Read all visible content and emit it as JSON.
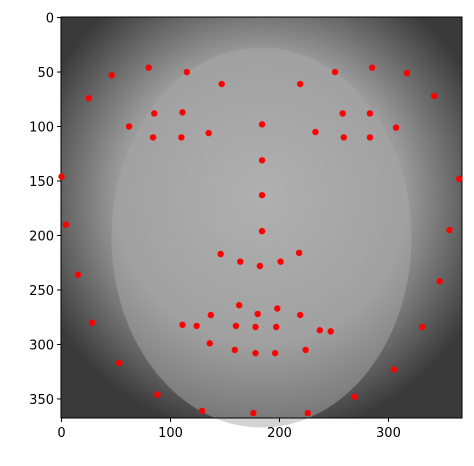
{
  "chart_data": {
    "type": "scatter",
    "xlim": [
      -0.5,
      367.5
    ],
    "ylim": [
      367.5,
      -0.5
    ],
    "xticks": [
      0,
      100,
      200,
      300
    ],
    "yticks": [
      0,
      50,
      100,
      150,
      200,
      250,
      300,
      350
    ],
    "series": [
      {
        "color": "#ff0000",
        "x": [
          25,
          46,
          80,
          115,
          147,
          219,
          251,
          285,
          317,
          342,
          62,
          85,
          111,
          135,
          110,
          84,
          233,
          258,
          283,
          307,
          283,
          259,
          184,
          184,
          184,
          184,
          146,
          164,
          182,
          201,
          218,
          0,
          4,
          15,
          28,
          53,
          88,
          129,
          176,
          226,
          269,
          305,
          331,
          347,
          356,
          365,
          111,
          137,
          163,
          180,
          198,
          219,
          237,
          224,
          196,
          178,
          159,
          136,
          124,
          160,
          178,
          197,
          247
        ],
        "values": [
          74,
          53,
          46,
          50,
          61,
          61,
          50,
          46,
          51,
          72,
          100,
          88,
          87,
          106,
          110,
          110,
          105,
          88,
          88,
          101,
          110,
          110,
          98,
          131,
          163,
          196,
          217,
          224,
          228,
          224,
          216,
          146,
          190,
          236,
          280,
          317,
          346,
          361,
          363,
          363,
          348,
          323,
          284,
          242,
          195,
          148,
          282,
          273,
          264,
          272,
          267,
          273,
          287,
          305,
          308,
          308,
          305,
          299,
          283,
          283,
          284,
          284,
          288
        ]
      }
    ]
  }
}
